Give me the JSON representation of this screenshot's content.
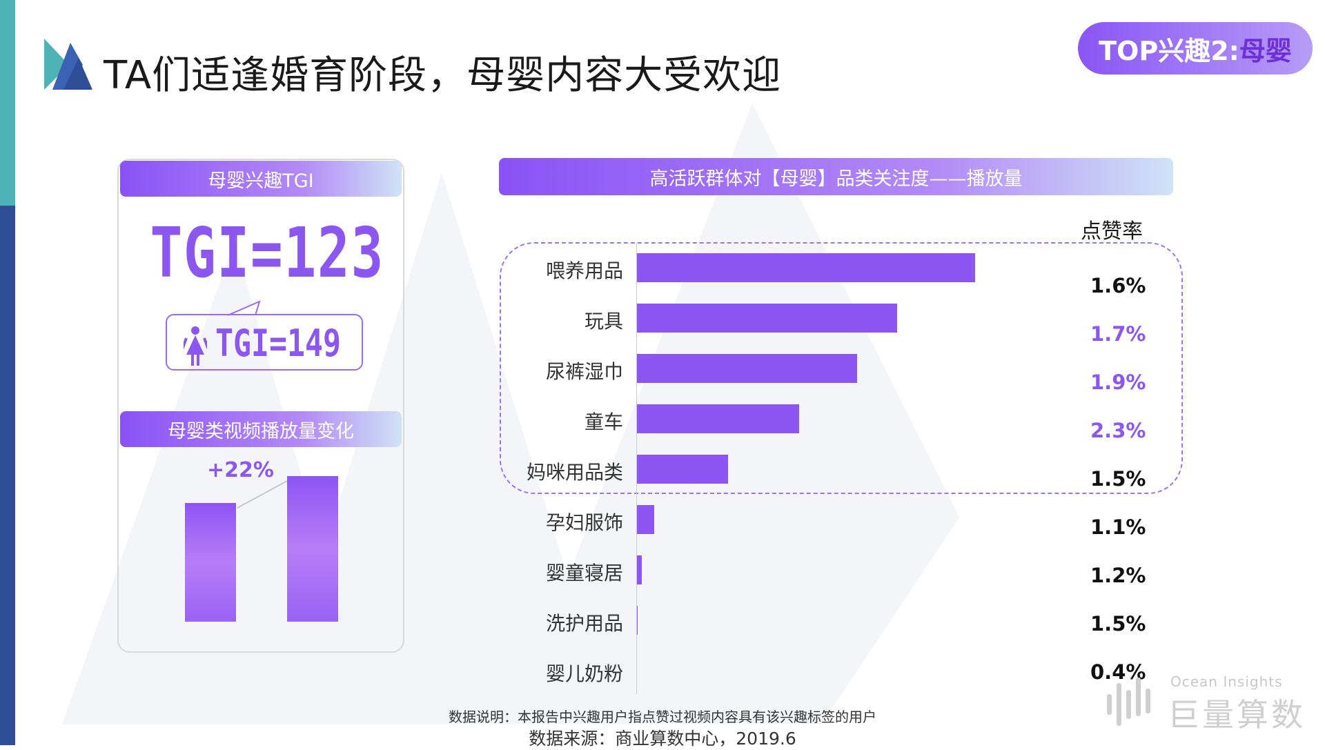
{
  "header": {
    "title": "TA们适逢婚育阶段，母婴内容大受欢迎",
    "badge_prefix": "TOP兴趣2:",
    "badge_highlight": "母婴"
  },
  "left_panel": {
    "tgi_header": "母婴兴趣TGI",
    "tgi_value": "TGI=123",
    "female_tgi": "TGI=149",
    "video_header": "母婴类视频播放量变化",
    "growth_label": "+22%"
  },
  "chart_data": {
    "type": "bar",
    "orientation": "horizontal",
    "title": "高活跃群体对【母婴】品类关注度——播放量",
    "categories": [
      "喂养用品",
      "玩具",
      "尿裤湿巾",
      "童车",
      "妈咪用品类",
      "孕妇服饰",
      "婴童寝居",
      "洗护用品",
      "婴儿奶粉"
    ],
    "values": [
      100,
      77,
      65,
      48,
      27,
      5,
      1.5,
      0.3,
      0
    ],
    "like_rate_header": "点赞率",
    "like_rates": [
      "1.6%",
      "1.7%",
      "1.9%",
      "2.3%",
      "1.5%",
      "1.1%",
      "1.2%",
      "1.5%",
      "0.4%"
    ],
    "like_rate_colors": [
      "#111111",
      "#8c56f0",
      "#8c56f0",
      "#8c56f0",
      "#111111",
      "#111111",
      "#111111",
      "#111111",
      "#111111"
    ],
    "highlighted_categories": [
      "喂养用品",
      "玩具",
      "尿裤湿巾",
      "童车",
      "妈咪用品类"
    ],
    "bar_color": "#8c55f4"
  },
  "footer": {
    "note": "数据说明：本报告中兴趣用户指点赞过视频内容具有该兴趣标签的用户",
    "source": "数据来源：商业算数中心，2019.6",
    "brand_en": "Ocean Insights",
    "brand_cn": "巨量算数"
  }
}
